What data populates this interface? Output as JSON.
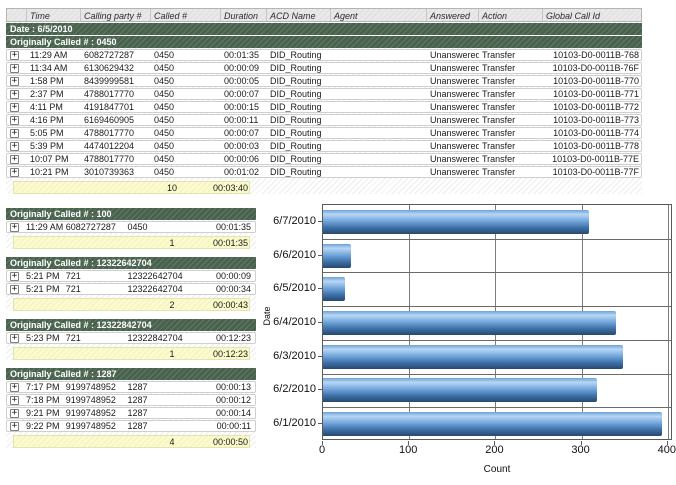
{
  "table": {
    "columns": [
      "",
      "Time",
      "Calling party #",
      "Called #",
      "Duration",
      "ACD Name",
      "Agent",
      "Answered",
      "Action",
      "Global Call Id"
    ],
    "date_band": "Date : 6/5/2010"
  },
  "top_group": {
    "header": "Originally Called # : 0450",
    "rows": [
      {
        "time": "11:29 AM",
        "calling": "6082727287",
        "called": "0450",
        "duration": "00:01:35",
        "acd": "DID_Routing",
        "agent": "",
        "answered": "Unanswered",
        "action": "Transfer",
        "global_id": "10103-D0-0011B-768"
      },
      {
        "time": "11:34 AM",
        "calling": "6130629432",
        "called": "0450",
        "duration": "00:00:09",
        "acd": "DID_Routing",
        "agent": "",
        "answered": "Unanswered",
        "action": "Transfer",
        "global_id": "10103-D0-0011B-76F"
      },
      {
        "time": "1:58 PM",
        "calling": "8439999581",
        "called": "0450",
        "duration": "00:00:05",
        "acd": "DID_Routing",
        "agent": "",
        "answered": "Unanswered",
        "action": "Transfer",
        "global_id": "10103-D0-0011B-770"
      },
      {
        "time": "2:37 PM",
        "calling": "4788017770",
        "called": "0450",
        "duration": "00:00:07",
        "acd": "DID_Routing",
        "agent": "",
        "answered": "Unanswered",
        "action": "Transfer",
        "global_id": "10103-D0-0011B-771"
      },
      {
        "time": "4:11 PM",
        "calling": "4191847701",
        "called": "0450",
        "duration": "00:00:15",
        "acd": "DID_Routing",
        "agent": "",
        "answered": "Unanswered",
        "action": "Transfer",
        "global_id": "10103-D0-0011B-772"
      },
      {
        "time": "4:16 PM",
        "calling": "6169460905",
        "called": "0450",
        "duration": "00:00:11",
        "acd": "DID_Routing",
        "agent": "",
        "answered": "Unanswered",
        "action": "Transfer",
        "global_id": "10103-D0-0011B-773"
      },
      {
        "time": "5:05 PM",
        "calling": "4788017770",
        "called": "0450",
        "duration": "00:00:07",
        "acd": "DID_Routing",
        "agent": "",
        "answered": "Unanswered",
        "action": "Transfer",
        "global_id": "10103-D0-0011B-774"
      },
      {
        "time": "5:39 PM",
        "calling": "4474012204",
        "called": "0450",
        "duration": "00:00:03",
        "acd": "DID_Routing",
        "agent": "",
        "answered": "Unanswered",
        "action": "Transfer",
        "global_id": "10103-D0-0011B-778"
      },
      {
        "time": "10:07 PM",
        "calling": "4788017770",
        "called": "0450",
        "duration": "00:00:06",
        "acd": "DID_Routing",
        "agent": "",
        "answered": "Unanswered",
        "action": "Transfer",
        "global_id": "10103-D0-0011B-77E"
      },
      {
        "time": "10:21 PM",
        "calling": "3010739363",
        "called": "0450",
        "duration": "00:01:02",
        "acd": "DID_Routing",
        "agent": "",
        "answered": "Unanswered",
        "action": "Transfer",
        "global_id": "10103-D0-0011B-77F"
      }
    ],
    "summary": {
      "count": "10",
      "duration": "00:03:40"
    }
  },
  "sections": [
    {
      "header": "Originally Called # : 100",
      "rows": [
        {
          "time": "11:29 AM",
          "calling": "6082727287",
          "called": "0450",
          "duration": "00:01:35"
        }
      ],
      "summary": {
        "count": "1",
        "duration": "00:01:35"
      }
    },
    {
      "header": "Originally Called # : 12322642704",
      "rows": [
        {
          "time": "5:21 PM",
          "calling": "721",
          "called": "12322642704",
          "duration": "00:00:09"
        },
        {
          "time": "5:21 PM",
          "calling": "721",
          "called": "12322642704",
          "duration": "00:00:34"
        }
      ],
      "summary": {
        "count": "2",
        "duration": "00:00:43"
      }
    },
    {
      "header": "Originally Called # : 12322842704",
      "rows": [
        {
          "time": "5:23 PM",
          "calling": "721",
          "called": "12322842704",
          "duration": "00:12:23"
        }
      ],
      "summary": {
        "count": "1",
        "duration": "00:12:23"
      }
    },
    {
      "header": "Originally Called # : 1287",
      "rows": [
        {
          "time": "7:17 PM",
          "calling": "9199748952",
          "called": "1287",
          "duration": "00:00:13"
        },
        {
          "time": "7:18 PM",
          "calling": "9199748952",
          "called": "1287",
          "duration": "00:00:12"
        },
        {
          "time": "9:21 PM",
          "calling": "9199748952",
          "called": "1287",
          "duration": "00:00:14"
        },
        {
          "time": "9:22 PM",
          "calling": "9199748952",
          "called": "1287",
          "duration": "00:00:11"
        }
      ],
      "summary": {
        "count": "4",
        "duration": "00:00:50"
      }
    }
  ],
  "chart_data": {
    "type": "bar",
    "orientation": "horizontal",
    "categories": [
      "6/7/2010",
      "6/6/2010",
      "6/5/2010",
      "6/4/2010",
      "6/3/2010",
      "6/2/2010",
      "6/1/2010"
    ],
    "values": [
      308,
      32,
      26,
      340,
      348,
      318,
      393
    ],
    "title": "",
    "xlabel": "Count",
    "ylabel": "Date",
    "xlim": [
      0,
      400
    ],
    "xticks": [
      0,
      100,
      200,
      300,
      400
    ],
    "grid": true,
    "legend": false
  },
  "icons": {
    "expand": "+"
  },
  "colors": {
    "group_band_green": "#48624d",
    "summary_yellow": "#fbfbcd",
    "bar_light": "#b7d7f4",
    "bar_mid": "#6ea2d8",
    "bar_dark": "#27496e",
    "grid_gray": "#7d7d7d"
  }
}
